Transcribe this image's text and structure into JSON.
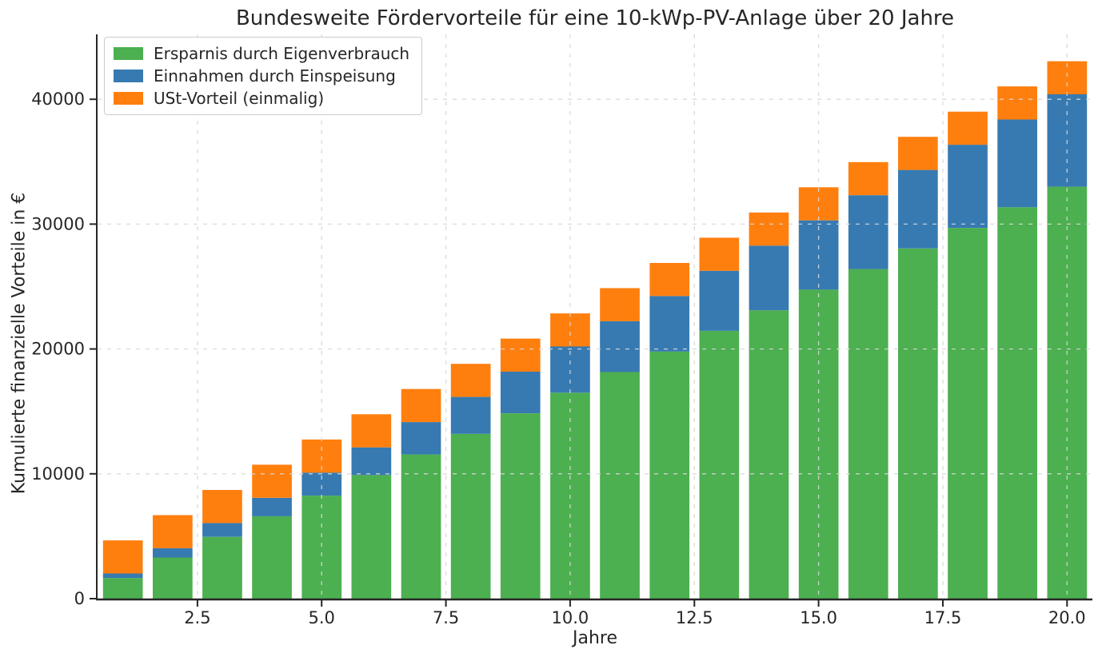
{
  "chart_data": {
    "type": "bar",
    "stacked": true,
    "title": "Bundesweite Fördervorteile für eine 10-kWp-PV-Anlage über 20 Jahre",
    "xlabel": "Jahre",
    "ylabel": "Kumulierte finanzielle Vorteile in €",
    "x": [
      1,
      2,
      3,
      4,
      5,
      6,
      7,
      8,
      9,
      10,
      11,
      12,
      13,
      14,
      15,
      16,
      17,
      18,
      19,
      20
    ],
    "series": [
      {
        "name": "Ersparnis durch Eigenverbrauch",
        "color": "#4caf50",
        "values": [
          1650,
          3300,
          4950,
          6600,
          8250,
          9900,
          11550,
          13200,
          14850,
          16500,
          18150,
          19800,
          21450,
          23100,
          24750,
          26400,
          28050,
          29700,
          31350,
          33000
        ]
      },
      {
        "name": "Einnahmen durch Einspeisung",
        "color": "#377ab1",
        "values": [
          370,
          740,
          1110,
          1480,
          1850,
          2220,
          2590,
          2960,
          3330,
          3700,
          4070,
          4440,
          4810,
          5180,
          5550,
          5920,
          6290,
          6660,
          7030,
          7400
        ]
      },
      {
        "name": "USt-Vorteil (einmalig)",
        "color": "#ff7f0e",
        "values": [
          2650,
          2650,
          2650,
          2650,
          2650,
          2650,
          2650,
          2650,
          2650,
          2650,
          2650,
          2650,
          2650,
          2650,
          2650,
          2650,
          2650,
          2650,
          2650,
          2650
        ]
      }
    ],
    "totals_year20": 43050,
    "bar_width": 0.8,
    "xlim": [
      0.49,
      20.51
    ],
    "ylim": [
      0,
      45200
    ],
    "xticks": [
      2.5,
      5.0,
      7.5,
      10.0,
      12.5,
      15.0,
      17.5,
      20.0
    ],
    "xtick_labels": [
      "2.5",
      "5.0",
      "7.5",
      "10.0",
      "12.5",
      "15.0",
      "17.5",
      "20.0"
    ],
    "yticks": [
      0,
      10000,
      20000,
      30000,
      40000
    ],
    "ytick_labels": [
      "0",
      "10000",
      "20000",
      "30000",
      "40000"
    ],
    "grid": {
      "show": true,
      "style": "dashed",
      "color": "#d8d8d8",
      "over_bars": true
    },
    "axis_color": "#262626",
    "legend_position": "upper-left"
  }
}
